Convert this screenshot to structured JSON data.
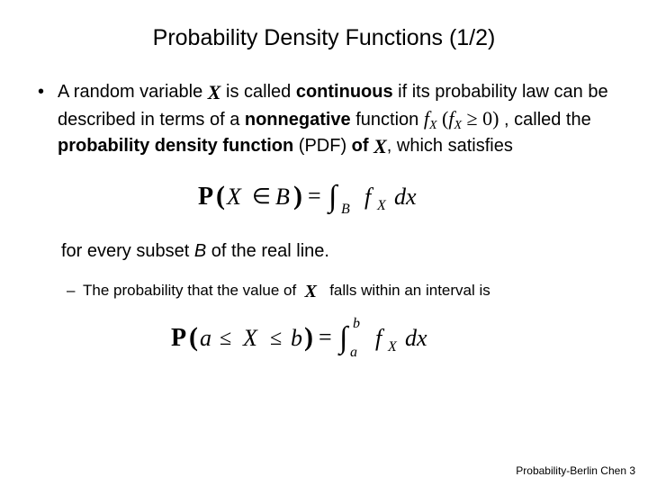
{
  "title": "Probability Density Functions (1/2)",
  "bullet": {
    "t1": "A random variable ",
    "var_X": "X",
    "t2": " is called ",
    "b_continuous": "continuous",
    "t3": " if its probability law can be described in terms of a ",
    "b_nonneg": "nonnegative",
    "t4": " function ",
    "fx": "f",
    "fx_sub": "X",
    "paren_open": " (",
    "fx2": "f",
    "fx2_sub": "X",
    "geq": " ≥ 0)",
    "t5": " , called the ",
    "b_pdf": "probability density function",
    "t6": " (PDF) ",
    "b_of": "of ",
    "var_X2": "X",
    "t7": ", which satisfies"
  },
  "formula1": {
    "P": "P",
    "open": "(",
    "X": "X",
    "in": "∈",
    "B": "B",
    "close": ")",
    "eq": "=",
    "int": "∫",
    "sub": "B",
    "fx": "f",
    "fxsub": "X",
    "dx": "dx"
  },
  "after": {
    "t1": "for every subset ",
    "B": "B",
    "t2": " of the real line."
  },
  "subbullet": {
    "t1": "The probability that the value  of ",
    "X": "X",
    "t2": " falls within an interval is"
  },
  "formula2": {
    "P": "P",
    "open": "(",
    "a": "a",
    "le1": "≤",
    "X": "X",
    "le2": "≤",
    "b": "b",
    "close": ")",
    "eq": "=",
    "int": "∫",
    "lo": "a",
    "hi": "b",
    "fx": "f",
    "fxsub": "X",
    "dx": "dx"
  },
  "footer": "Probability-Berlin Chen 3",
  "colors": {
    "bg": "#ffffff",
    "text": "#000000"
  },
  "fonts": {
    "body": "Arial",
    "math": "Times New Roman",
    "title_size_pt": 25,
    "body_size_pt": 20,
    "sub_size_pt": 17,
    "footer_size_pt": 12
  }
}
